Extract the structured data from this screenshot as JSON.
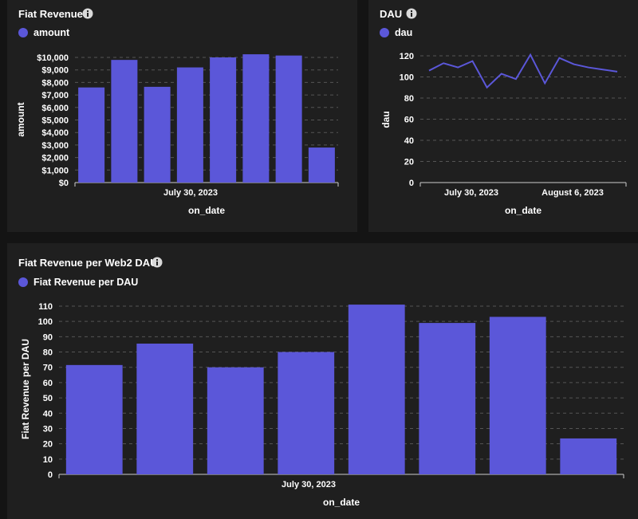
{
  "colors": {
    "accent": "#5b57d9",
    "grid": "#555555",
    "axis": "#cccccc"
  },
  "panels": {
    "fiat_revenue": {
      "title": "Fiat Revenue",
      "legend": "amount",
      "icon": "info-icon"
    },
    "dau": {
      "title": "DAU",
      "legend": "dau",
      "icon": "info-icon"
    },
    "fiat_per_dau": {
      "title": "Fiat Revenue per Web2 DAU",
      "legend": "Fiat Revenue per DAU",
      "icon": "info-icon"
    }
  },
  "chart_data": [
    {
      "type": "bar",
      "xlabel": "on_date",
      "ylabel": "amount",
      "x_tick_labels": [
        "July 30, 2023"
      ],
      "y_tick_labels": [
        "$0",
        "$1,000",
        "$2,000",
        "$3,000",
        "$4,000",
        "$5,000",
        "$6,000",
        "$7,000",
        "$8,000",
        "$9,000",
        "$10,000"
      ],
      "ylim": [
        0,
        10000
      ],
      "grid": true,
      "series": [
        {
          "name": "amount",
          "values": [
            7600,
            9800,
            7650,
            9200,
            10000,
            10250,
            10150,
            2800
          ]
        }
      ]
    },
    {
      "type": "line",
      "xlabel": "on_date",
      "ylabel": "dau",
      "x_tick_labels": [
        "July 30, 2023",
        "August 6, 2023"
      ],
      "y_tick_labels": [
        "0",
        "20",
        "40",
        "60",
        "80",
        "100",
        "120"
      ],
      "ylim": [
        0,
        120
      ],
      "grid": true,
      "series": [
        {
          "name": "dau",
          "values": [
            106,
            113,
            109,
            115,
            90,
            103,
            98,
            121,
            94,
            118,
            112,
            109,
            107,
            105
          ]
        }
      ]
    },
    {
      "type": "bar",
      "xlabel": "on_date",
      "ylabel": "Fiat Revenue per DAU",
      "x_tick_labels": [
        "July 30, 2023"
      ],
      "y_tick_labels": [
        "0",
        "10",
        "20",
        "30",
        "40",
        "50",
        "60",
        "70",
        "80",
        "90",
        "100",
        "110"
      ],
      "ylim": [
        0,
        110
      ],
      "grid": true,
      "series": [
        {
          "name": "Fiat Revenue per DAU",
          "values": [
            71.5,
            85.5,
            70,
            80,
            111,
            99,
            103,
            23.5
          ]
        }
      ]
    }
  ]
}
